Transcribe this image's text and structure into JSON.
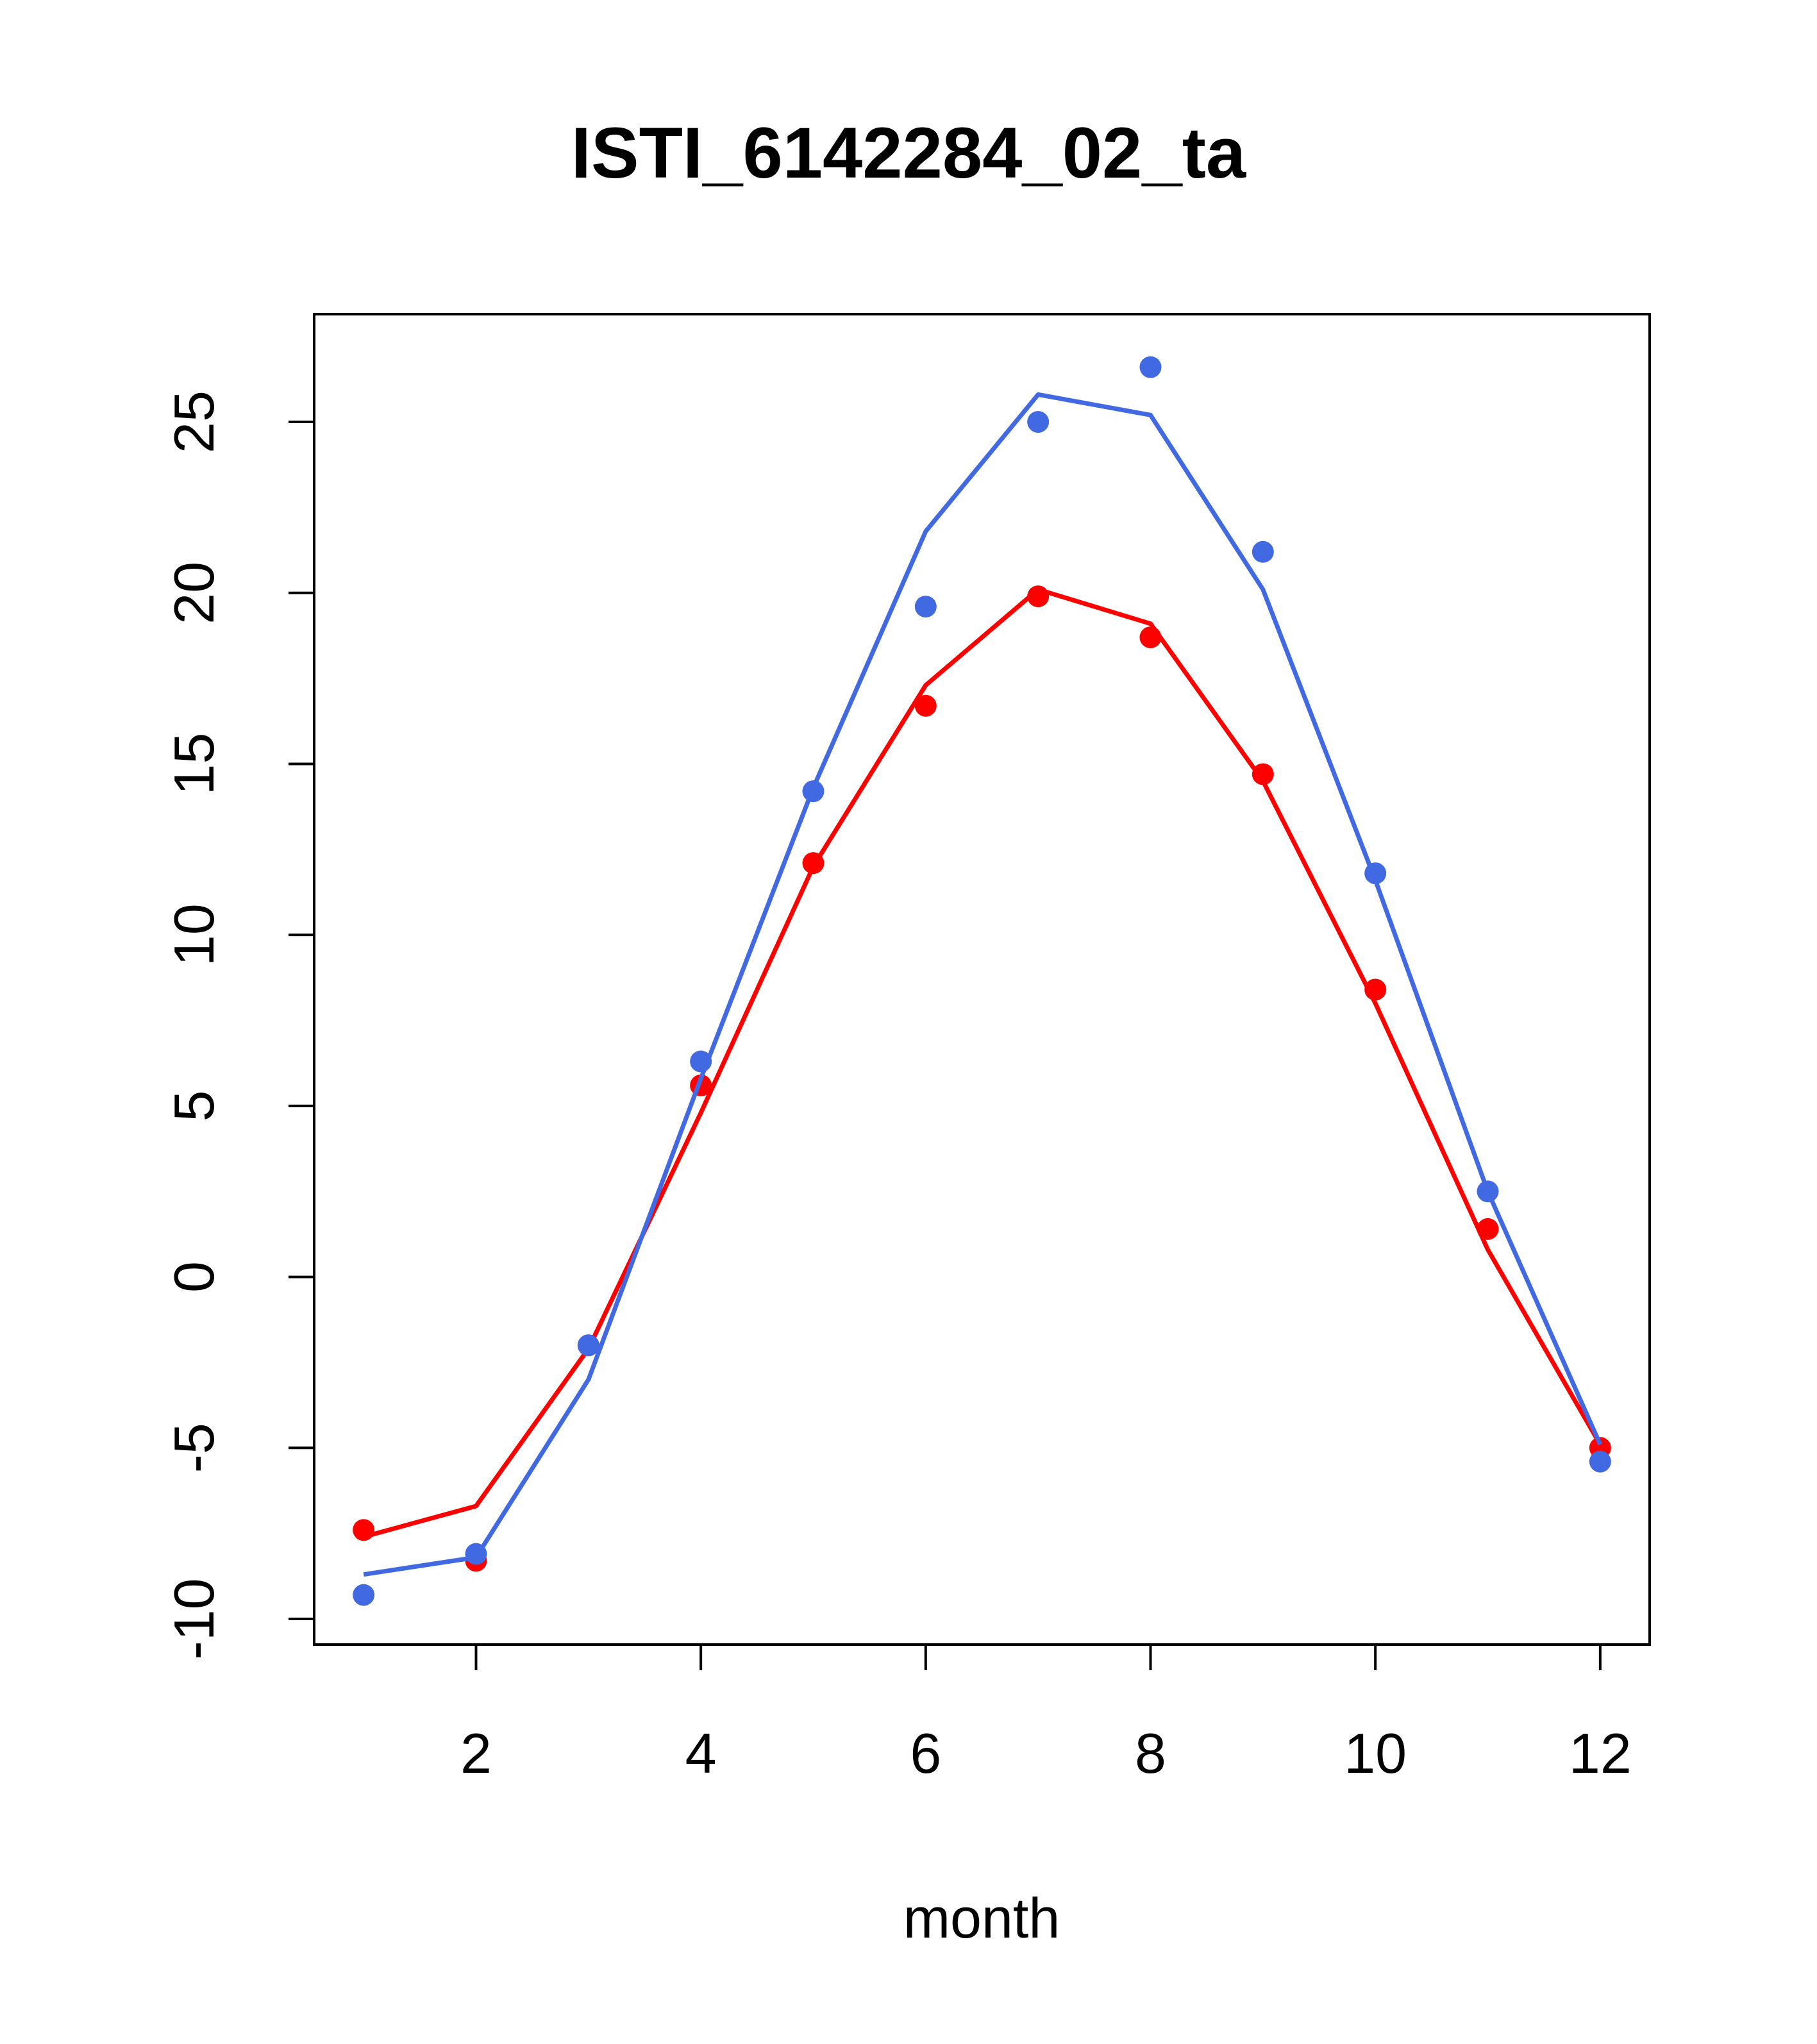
{
  "chart_data": {
    "type": "line",
    "title": "ISTI_6142284_02_ta",
    "xlabel": "month",
    "ylabel": "",
    "xlim": [
      0.56,
      12.44
    ],
    "ylim": [
      -10.75,
      28.15
    ],
    "x_ticks": [
      2,
      4,
      6,
      8,
      10,
      12
    ],
    "y_ticks": [
      -10,
      -5,
      0,
      5,
      10,
      15,
      20,
      25
    ],
    "x_tick_labels": [
      "2",
      "4",
      "6",
      "8",
      "10",
      "12"
    ],
    "y_tick_labels": [
      "-10",
      "-5",
      "0",
      "5",
      "10",
      "15",
      "20",
      "25"
    ],
    "grid": false,
    "x": [
      1,
      2,
      3,
      4,
      5,
      6,
      7,
      8,
      9,
      10,
      11,
      12
    ],
    "series": [
      {
        "color": "#ff0000",
        "points": [
          -7.4,
          -8.3,
          -2.0,
          5.6,
          12.1,
          16.7,
          19.9,
          18.7,
          14.7,
          8.4,
          1.4,
          -5.0
        ],
        "line": [
          -7.6,
          -6.7,
          -2.1,
          4.8,
          12.0,
          17.3,
          20.1,
          19.1,
          14.5,
          8.0,
          0.8,
          -4.9
        ]
      },
      {
        "color": "#4169e1",
        "points": [
          -9.3,
          -8.1,
          -2.0,
          6.3,
          14.2,
          19.6,
          25.0,
          26.6,
          21.2,
          11.8,
          2.5,
          -5.4
        ],
        "line": [
          -8.7,
          -8.2,
          -3.0,
          5.8,
          14.3,
          21.8,
          25.8,
          25.2,
          20.1,
          11.6,
          2.5,
          -4.9
        ]
      }
    ]
  }
}
